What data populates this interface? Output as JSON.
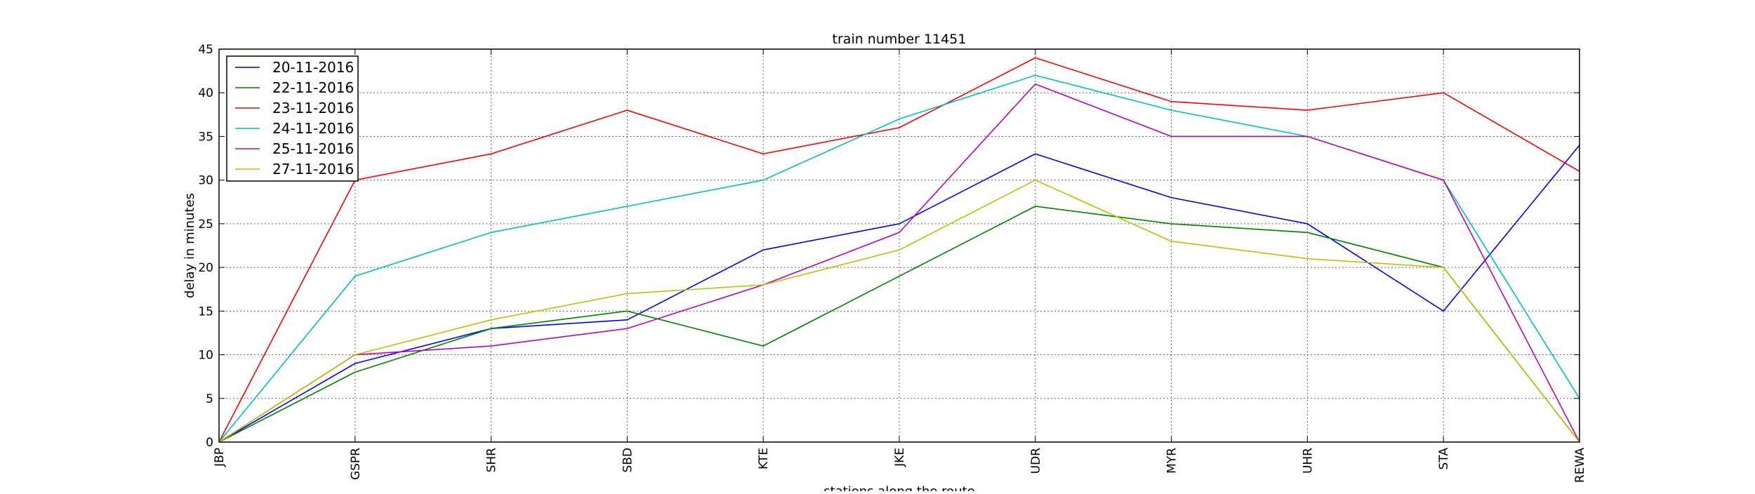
{
  "chart_data": {
    "type": "line",
    "title": "train number 11451",
    "xlabel": "stations along the route",
    "ylabel": "delay in minutes",
    "categories": [
      "JBP",
      "GSPR",
      "SHR",
      "SBD",
      "KTE",
      "JKE",
      "UDR",
      "MYR",
      "UHR",
      "STA",
      "REWA"
    ],
    "ylim": [
      0,
      45
    ],
    "yticks": [
      0,
      5,
      10,
      15,
      20,
      25,
      30,
      35,
      40,
      45
    ],
    "grid": true,
    "legend": "top-left",
    "series": [
      {
        "name": "20-11-2016",
        "color": "#0000ff",
        "values": [
          0,
          9,
          13,
          14,
          22,
          25,
          33,
          28,
          25,
          15,
          34
        ]
      },
      {
        "name": "22-11-2016",
        "color": "#008000",
        "values": [
          0,
          8,
          13,
          15,
          11,
          19,
          27,
          25,
          24,
          20,
          0
        ]
      },
      {
        "name": "23-11-2016",
        "color": "#ff0000",
        "values": [
          0,
          30,
          33,
          38,
          33,
          36,
          44,
          39,
          38,
          40,
          31
        ]
      },
      {
        "name": "24-11-2016",
        "color": "#00bfbf",
        "values": [
          0,
          19,
          24,
          27,
          30,
          37,
          42,
          38,
          35,
          30,
          5
        ]
      },
      {
        "name": "25-11-2016",
        "color": "#bf00bf",
        "values": [
          0,
          10,
          11,
          13,
          18,
          24,
          41,
          35,
          35,
          30,
          0
        ]
      },
      {
        "name": "27-11-2016",
        "color": "#bfbf00",
        "values": [
          0,
          10,
          14,
          17,
          18,
          22,
          30,
          23,
          21,
          20,
          0
        ]
      }
    ]
  }
}
